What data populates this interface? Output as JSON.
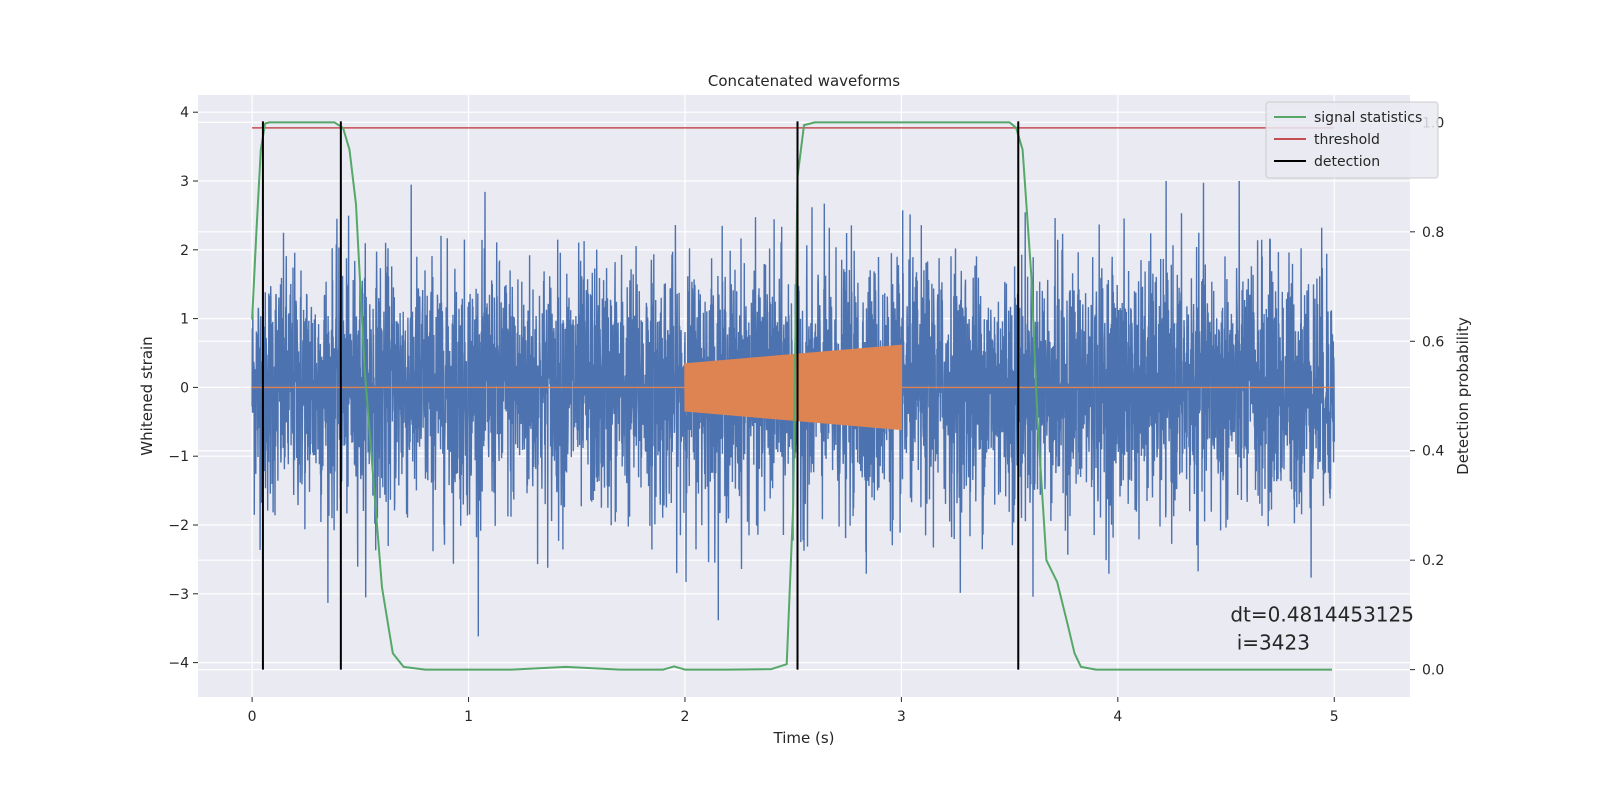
{
  "chart_data": {
    "type": "line",
    "title": "Concatenated waveforms",
    "xlabel": "Time (s)",
    "ylabel": "Whitened strain",
    "y2label": "Detection probability",
    "xlim": [
      -0.25,
      5.35
    ],
    "ylim": [
      -4.5,
      4.25
    ],
    "y2lim": [
      -0.05,
      1.05
    ],
    "xticks": [
      0,
      1,
      2,
      3,
      4,
      5
    ],
    "yticks": [
      -4,
      -3,
      -2,
      -1,
      0,
      1,
      2,
      3,
      4
    ],
    "y2ticks": [
      0.0,
      0.2,
      0.4,
      0.6,
      0.8,
      1.0
    ],
    "grid": true,
    "legend_position": "top-right",
    "annotation": {
      "line1": "dt=0.4814453125",
      "line2": " i=3423",
      "x": 4.52,
      "y": -3.4
    },
    "colors": {
      "strain": "#4c72b0",
      "template": "#dd8452",
      "signal": "#55a868",
      "threshold": "#c44e52",
      "detection": "#000000",
      "background": "#eaeaf2"
    },
    "strain": {
      "name": "",
      "x_range": [
        0,
        5
      ],
      "amplitude": 1.25,
      "peak_max": 3.0,
      "peak_min": -3.3
    },
    "template": {
      "name": "",
      "x_range": [
        2,
        3
      ],
      "amp_start": 0.35,
      "amp_end": 0.62
    },
    "signal_statistics": {
      "name": "signal statistics",
      "x": [
        0.0,
        0.02,
        0.04,
        0.06,
        0.08,
        0.1,
        0.2,
        0.3,
        0.38,
        0.42,
        0.45,
        0.48,
        0.5,
        0.52,
        0.55,
        0.6,
        0.65,
        0.7,
        0.8,
        1.0,
        1.2,
        1.45,
        1.7,
        1.9,
        1.95,
        2.0,
        2.2,
        2.4,
        2.47,
        2.5,
        2.52,
        2.55,
        2.6,
        3.0,
        3.4,
        3.5,
        3.53,
        3.56,
        3.6,
        3.63,
        3.67,
        3.72,
        3.77,
        3.8,
        3.83,
        3.9,
        4.5,
        4.99
      ],
      "values": [
        0.64,
        0.8,
        0.95,
        0.998,
        1.0,
        1.0,
        1.0,
        1.0,
        1.0,
        0.99,
        0.95,
        0.85,
        0.7,
        0.55,
        0.4,
        0.15,
        0.03,
        0.005,
        0.0,
        0.0,
        0.0,
        0.005,
        0.0,
        0.0,
        0.006,
        0.0,
        0.0,
        0.001,
        0.01,
        0.3,
        0.9,
        0.995,
        1.0,
        1.0,
        1.0,
        1.0,
        0.99,
        0.95,
        0.72,
        0.45,
        0.2,
        0.16,
        0.08,
        0.03,
        0.005,
        0.0,
        0.0,
        0.0
      ]
    },
    "threshold": {
      "name": "threshold",
      "value": 0.99,
      "x_range": [
        0,
        5
      ]
    },
    "detections": {
      "name": "detection",
      "x": [
        0.05,
        0.41,
        2.52,
        3.54
      ],
      "y_range": [
        0.0,
        1.0
      ]
    },
    "legend": [
      "signal statistics",
      "threshold",
      "detection"
    ]
  }
}
